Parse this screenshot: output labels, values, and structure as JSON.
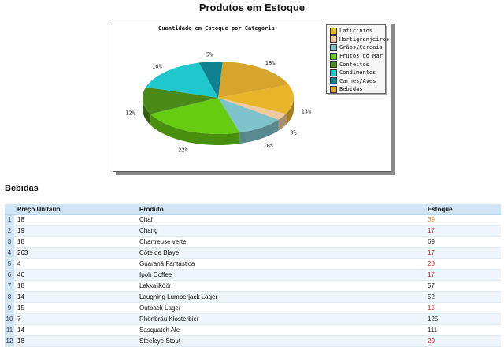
{
  "page": {
    "title": "Produtos em Estoque"
  },
  "chart_data": {
    "type": "pie",
    "title": "Quantidade em Estoque por Categoria",
    "categories": [
      "Laticínios",
      "Hortigranjeiros",
      "Grãos/Cereais",
      "Frutos do Mar",
      "Confeitos",
      "Condimentos",
      "Carnes/Aves",
      "Bebidas"
    ],
    "values": [
      13,
      3,
      10,
      22,
      12,
      16,
      5,
      18
    ],
    "labels": [
      "13%",
      "3%",
      "10%",
      "22%",
      "12%",
      "16%",
      "5%",
      "18%"
    ],
    "colors": [
      "#e8b42a",
      "#f0c9a0",
      "#7ec3cc",
      "#66cc11",
      "#4a8a18",
      "#1ec8cc",
      "#0f8090",
      "#d8a52c"
    ],
    "legend_position": "top-right"
  },
  "section": {
    "title": "Bebidas"
  },
  "table": {
    "columns": [
      "Preço Unitário",
      "Produto",
      "Estoque"
    ],
    "rows": [
      {
        "n": "1",
        "preco": "18",
        "produto": "Chai",
        "estoque": "39",
        "level": "hi"
      },
      {
        "n": "2",
        "preco": "19",
        "produto": "Chang",
        "estoque": "17",
        "level": "low"
      },
      {
        "n": "3",
        "preco": "18",
        "produto": "Chartreuse verte",
        "estoque": "69",
        "level": "ok"
      },
      {
        "n": "4",
        "preco": "263",
        "produto": "Côte de Blaye",
        "estoque": "17",
        "level": "low"
      },
      {
        "n": "5",
        "preco": "4",
        "produto": "Guaraná Fantástica",
        "estoque": "20",
        "level": "low"
      },
      {
        "n": "6",
        "preco": "46",
        "produto": "Ipoh Coffee",
        "estoque": "17",
        "level": "low"
      },
      {
        "n": "7",
        "preco": "18",
        "produto": "Lakkalikööri",
        "estoque": "57",
        "level": "ok"
      },
      {
        "n": "8",
        "preco": "14",
        "produto": "Laughing Lumberjack Lager",
        "estoque": "52",
        "level": "ok"
      },
      {
        "n": "9",
        "preco": "15",
        "produto": "Outback Lager",
        "estoque": "15",
        "level": "low"
      },
      {
        "n": "10",
        "preco": "7",
        "produto": "Rhönbräu Klosterbier",
        "estoque": "125",
        "level": "ok"
      },
      {
        "n": "11",
        "preco": "14",
        "produto": "Sasquatch Ale",
        "estoque": "111",
        "level": "ok"
      },
      {
        "n": "12",
        "preco": "18",
        "produto": "Steeleye Stout",
        "estoque": "20",
        "level": "low"
      }
    ]
  }
}
